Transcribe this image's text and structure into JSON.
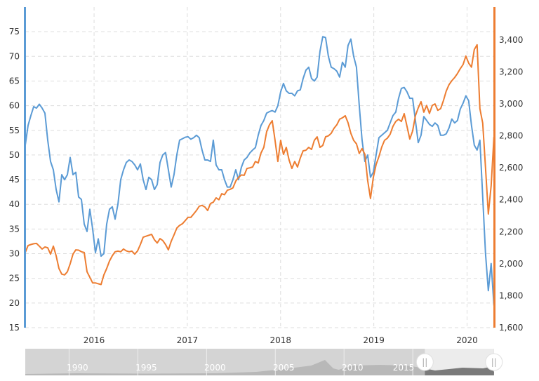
{
  "chart_data": {
    "type": "line",
    "title": "",
    "xlabel": "",
    "x_start_year": 2015.262,
    "x_step_years": 0.0301,
    "x_range": [
      2015.262,
      2020.29
    ],
    "x_ticks": [
      "2016",
      "2017",
      "2018",
      "2019",
      "2020"
    ],
    "x_tick_values": [
      2016,
      2017,
      2018,
      2019,
      2020
    ],
    "grid": true,
    "legend": "none",
    "left_axis": {
      "range": [
        15,
        80
      ],
      "ticks": [
        15,
        20,
        25,
        30,
        35,
        40,
        45,
        50,
        55,
        60,
        65,
        70,
        75
      ],
      "tick_labels": [
        "15",
        "20",
        "25",
        "30",
        "35",
        "40",
        "45",
        "50",
        "55",
        "60",
        "65",
        "70",
        "75"
      ],
      "color": "#5b9bd5"
    },
    "right_axis": {
      "range": [
        1600,
        3606
      ],
      "ticks": [
        1600,
        1800,
        2000,
        2200,
        2400,
        2600,
        2800,
        3000,
        3200,
        3400
      ],
      "tick_labels": [
        "1,600",
        "1,800",
        "2,000",
        "2,200",
        "2,400",
        "2,600",
        "2,800",
        "3,000",
        "3,200",
        "3,400"
      ],
      "color": "#ed7d31"
    },
    "series": [
      {
        "axis": "left",
        "color": "#5b9bd5",
        "values": [
          52,
          56,
          58,
          59.8,
          59.5,
          60.3,
          59.5,
          58.5,
          53,
          48.7,
          47,
          43,
          40.5,
          46,
          45,
          46,
          49.5,
          46,
          46.5,
          41.5,
          41,
          36,
          34.5,
          39,
          35,
          30.2,
          33,
          29.5,
          30,
          36,
          39,
          39.5,
          37,
          40,
          45,
          47,
          48.5,
          49,
          48.7,
          48,
          47,
          48.2,
          45,
          43,
          45.5,
          45,
          43,
          44,
          48.5,
          50,
          50.5,
          47,
          43.5,
          46,
          50,
          53,
          53.3,
          53.6,
          53.7,
          53.2,
          53.5,
          54,
          53.5,
          51,
          49,
          49,
          48.7,
          53,
          48,
          47,
          47,
          45,
          43.5,
          43.5,
          45,
          47,
          45,
          47.5,
          49,
          49.5,
          50.4,
          51,
          51.5,
          54,
          56,
          57,
          58.5,
          58.8,
          59,
          58.7,
          60,
          62.8,
          64.5,
          63,
          62.5,
          62.5,
          62,
          63,
          63.2,
          65.5,
          67.2,
          67.8,
          65.5,
          65,
          65.8,
          71,
          74,
          73.8,
          70,
          67.8,
          67.5,
          67,
          65.8,
          68.8,
          67.8,
          72.2,
          73.5,
          70,
          67.8,
          60,
          53,
          48.7,
          50,
          45.5,
          46.5,
          50,
          53.5,
          54,
          54.5,
          55,
          56.5,
          58,
          58.7,
          61.5,
          63.5,
          63.7,
          62.8,
          61.5,
          61.5,
          57,
          52.5,
          54,
          57.8,
          57,
          56.2,
          55.8,
          56.5,
          56,
          54,
          54,
          54.3,
          55.5,
          57.3,
          56.5,
          57,
          59.3,
          60.5,
          62,
          61,
          56,
          52,
          51,
          53,
          41.5,
          30,
          22.5,
          28,
          19.5
        ]
      },
      {
        "axis": "right",
        "color": "#ed7d31",
        "values": [
          2070,
          2114,
          2120,
          2125,
          2127,
          2110,
          2092,
          2105,
          2100,
          2060,
          2110,
          2050,
          1970,
          1935,
          1930,
          1950,
          2000,
          2060,
          2087,
          2085,
          2075,
          2070,
          1950,
          1915,
          1880,
          1880,
          1875,
          1870,
          1930,
          1970,
          2017,
          2050,
          2075,
          2079,
          2075,
          2092,
          2080,
          2075,
          2079,
          2060,
          2080,
          2120,
          2166,
          2172,
          2178,
          2184,
          2150,
          2130,
          2157,
          2145,
          2120,
          2087,
          2140,
          2180,
          2223,
          2240,
          2250,
          2270,
          2290,
          2290,
          2311,
          2333,
          2360,
          2365,
          2355,
          2333,
          2377,
          2385,
          2412,
          2400,
          2438,
          2432,
          2460,
          2465,
          2475,
          2517,
          2540,
          2555,
          2553,
          2596,
          2600,
          2605,
          2640,
          2630,
          2693,
          2728,
          2825,
          2869,
          2895,
          2772,
          2640,
          2772,
          2684,
          2728,
          2649,
          2596,
          2640,
          2605,
          2662,
          2706,
          2710,
          2728,
          2715,
          2772,
          2794,
          2728,
          2740,
          2794,
          2800,
          2816,
          2847,
          2869,
          2904,
          2913,
          2926,
          2882,
          2816,
          2772,
          2750,
          2690,
          2720,
          2684,
          2520,
          2408,
          2540,
          2620,
          2670,
          2730,
          2772,
          2785,
          2810,
          2860,
          2890,
          2904,
          2890,
          2939,
          2860,
          2780,
          2830,
          2926,
          2975,
          3014,
          2948,
          2990,
          2940,
          2990,
          3000,
          2960,
          2970,
          3020,
          3080,
          3120,
          3145,
          3165,
          3190,
          3220,
          3246,
          3299,
          3255,
          3230,
          3340,
          3370,
          2970,
          2880,
          2600,
          2311,
          2487,
          2794
        ]
      }
    ]
  },
  "navigator": {
    "labels": [
      "1990",
      "1995",
      "2000",
      "2005",
      "2010",
      "2015"
    ],
    "label_years": [
      1990,
      1995,
      2000,
      2005,
      2010,
      2015
    ],
    "range": [
      1986.2,
      2020.3
    ],
    "selection": [
      2015.262,
      2020.29
    ],
    "handle_glyph": "||"
  }
}
